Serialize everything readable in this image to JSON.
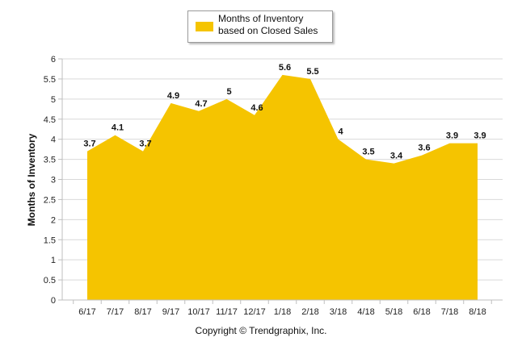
{
  "chart_data": {
    "type": "area",
    "categories": [
      "6/17",
      "7/17",
      "8/17",
      "9/17",
      "10/17",
      "11/17",
      "12/17",
      "1/18",
      "2/18",
      "3/18",
      "4/18",
      "5/18",
      "6/18",
      "7/18",
      "8/18"
    ],
    "series": [
      {
        "name": "Months of Inventory based on Closed Sales",
        "values": [
          3.7,
          4.1,
          3.7,
          4.9,
          4.7,
          5,
          4.6,
          5.6,
          5.5,
          4,
          3.5,
          3.4,
          3.6,
          3.9,
          3.9
        ],
        "color": "#f5c400"
      }
    ],
    "data_labels": [
      "3.7",
      "4.1",
      "3.7",
      "4.9",
      "4.7",
      "5",
      "4.6",
      "5.6",
      "5.5",
      "4",
      "3.5",
      "3.4",
      "3.6",
      "3.9",
      "3.9"
    ],
    "yticks": [
      "0",
      "0.5",
      "1",
      "1.5",
      "2",
      "2.5",
      "3",
      "3.5",
      "4",
      "4.5",
      "5",
      "5.5",
      "6"
    ],
    "ylabel": "Months of Inventory",
    "xlabel": "",
    "ylim": [
      0,
      6
    ],
    "grid": true,
    "legend_position": "top-center"
  },
  "legend": {
    "label": "Months of Inventory based on Closed Sales"
  },
  "footer": {
    "copyright": "Copyright © Trendgraphix, Inc."
  }
}
